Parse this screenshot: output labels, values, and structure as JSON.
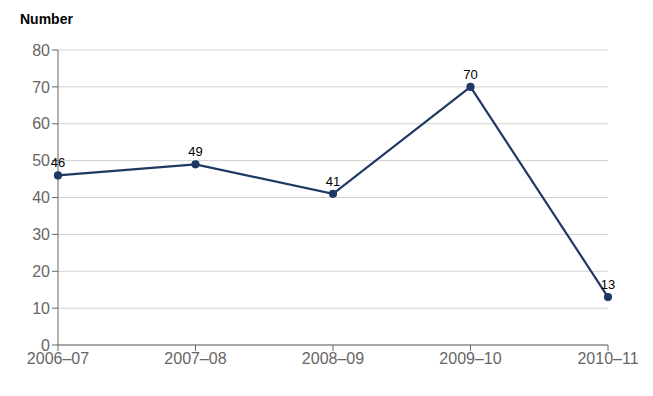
{
  "chart_data": {
    "type": "line",
    "ylabel": "Number",
    "categories": [
      "2006–07",
      "2007–08",
      "2008–09",
      "2009–10",
      "2010–11"
    ],
    "values": [
      46,
      49,
      41,
      70,
      13
    ],
    "color": "#1F3864",
    "marker": "circle",
    "ylim": [
      0,
      80
    ],
    "yticks": [
      0,
      10,
      20,
      30,
      40,
      50,
      60,
      70,
      80
    ],
    "grid": "y",
    "data_labels": true
  }
}
